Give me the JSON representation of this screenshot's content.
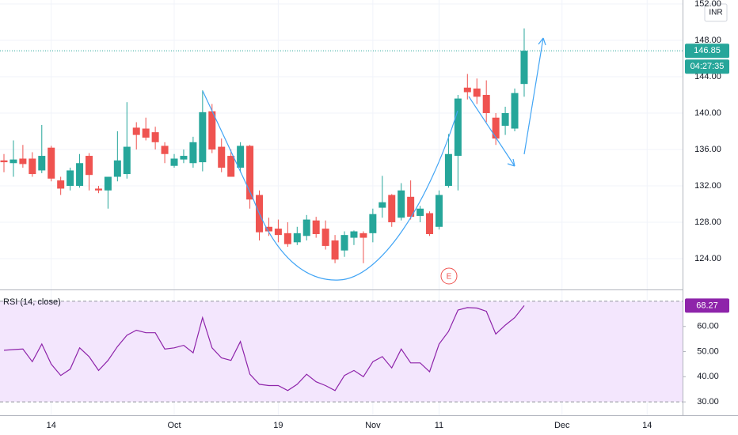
{
  "chart_data": [
    {
      "type": "candlestick",
      "currency": "INR",
      "countdown": "04:27:35",
      "event_marker": "E",
      "up_color": "#26a69a",
      "down_color": "#ef5350",
      "grid": true,
      "categories": [
        null,
        null,
        null,
        null,
        null,
        "14",
        null,
        null,
        null,
        null,
        null,
        null,
        null,
        null,
        null,
        null,
        null,
        null,
        "Oct",
        null,
        null,
        null,
        null,
        null,
        null,
        null,
        null,
        null,
        null,
        "19",
        null,
        null,
        null,
        null,
        null,
        null,
        null,
        null,
        null,
        "Nov",
        null,
        null,
        null,
        null,
        null,
        null,
        "11",
        null,
        null,
        null,
        null,
        null,
        null,
        null,
        null,
        null,
        null,
        null,
        null,
        "Dec",
        null,
        null,
        null,
        null,
        null,
        null,
        null,
        null,
        "14"
      ],
      "open": [
        134.8,
        134.5,
        135.0,
        135.0,
        133.7,
        136.2,
        132.6,
        132.0,
        132.0,
        135.3,
        131.7,
        131.5,
        133.0,
        133.3,
        138.4,
        138.3,
        137.9,
        136.4,
        134.2,
        134.9,
        134.5,
        134.6,
        140.2,
        136.3,
        135.3,
        134.0,
        136.4,
        131.0,
        127.5,
        127.3,
        126.8,
        125.8,
        126.5,
        128.2,
        127.3,
        126.0,
        124.9,
        126.3,
        126.8,
        126.8,
        129.6,
        131.0,
        128.5,
        130.8,
        128.7,
        129.0,
        127.5,
        132.0,
        135.3,
        142.8,
        142.7,
        142.0,
        139.5,
        138.6,
        138.3,
        143.2,
        null,
        null,
        null,
        null,
        null,
        null,
        null,
        null,
        null,
        null,
        null,
        null,
        null
      ],
      "high": [
        135.5,
        137.0,
        136.5,
        135.7,
        138.7,
        136.4,
        133.0,
        134.0,
        135.5,
        135.6,
        132.0,
        133.0,
        138.0,
        141.2,
        139.0,
        139.5,
        138.5,
        136.8,
        135.5,
        136.0,
        137.4,
        142.5,
        141.0,
        137.2,
        136.0,
        136.8,
        136.5,
        131.5,
        128.5,
        128.3,
        128.0,
        127.5,
        128.8,
        128.6,
        128.2,
        126.6,
        127.0,
        127.1,
        127.0,
        129.5,
        133.1,
        131.1,
        132.3,
        132.6,
        129.8,
        129.2,
        131.5,
        137.7,
        142.0,
        144.3,
        143.8,
        143.6,
        140.0,
        140.7,
        142.7,
        149.3,
        null,
        null,
        null,
        null,
        null,
        null,
        null,
        null,
        null,
        null,
        null,
        null,
        null
      ],
      "low": [
        133.5,
        133.0,
        134.0,
        133.0,
        133.4,
        132.5,
        131.0,
        131.5,
        131.8,
        131.5,
        131.2,
        129.5,
        132.5,
        132.8,
        136.0,
        137.0,
        136.0,
        134.5,
        134.0,
        134.5,
        134.0,
        133.6,
        135.6,
        133.5,
        133.0,
        133.5,
        129.5,
        126.0,
        126.5,
        125.8,
        125.3,
        125.5,
        126.0,
        126.3,
        125.0,
        123.5,
        124.2,
        125.5,
        123.5,
        125.8,
        128.5,
        127.5,
        128.2,
        128.3,
        128.0,
        126.5,
        127.2,
        131.8,
        131.5,
        141.5,
        141.0,
        139.0,
        136.5,
        137.6,
        138.0,
        141.8,
        null,
        null,
        null,
        null,
        null,
        null,
        null,
        null,
        null,
        null,
        null,
        null,
        null
      ],
      "close": [
        134.6,
        134.9,
        134.4,
        133.3,
        135.3,
        132.8,
        131.7,
        133.7,
        134.5,
        133.2,
        131.5,
        133.0,
        134.8,
        136.3,
        137.6,
        137.3,
        136.8,
        135.5,
        135.0,
        135.3,
        136.8,
        140.1,
        136.0,
        134.0,
        133.0,
        136.4,
        130.5,
        126.9,
        127.0,
        126.6,
        125.6,
        126.8,
        128.3,
        126.7,
        125.4,
        123.9,
        126.6,
        127.0,
        126.3,
        128.9,
        130.2,
        128.0,
        131.5,
        128.6,
        129.5,
        126.7,
        131.0,
        135.5,
        141.6,
        142.3,
        141.8,
        140.0,
        137.2,
        140.0,
        142.2,
        146.85,
        null,
        null,
        null,
        null,
        null,
        null,
        null,
        null,
        null,
        null,
        null,
        null,
        null
      ],
      "ylim": [
        120.7,
        152.43
      ],
      "yticks": [
        {
          "value": 124,
          "label": "124.00"
        },
        {
          "value": 128,
          "label": "128.00"
        },
        {
          "value": 132,
          "label": "132.00"
        },
        {
          "value": 136,
          "label": "136.00"
        },
        {
          "value": 140,
          "label": "140.00"
        },
        {
          "value": 144,
          "label": "144.00"
        },
        {
          "value": 148,
          "label": "148.00"
        },
        {
          "value": 152,
          "label": "152.00"
        }
      ]
    },
    {
      "type": "line",
      "title": "RSI (14, close)",
      "color": "#8e24aa",
      "band": [
        30,
        70
      ],
      "band_color": "#f3e6fd",
      "values": [
        50.5,
        50.8,
        51,
        46,
        53,
        45,
        40.5,
        43,
        51.5,
        48,
        42.5,
        46.5,
        52,
        56.5,
        58.5,
        57.5,
        57.5,
        51,
        51.5,
        52.5,
        49.5,
        63.5,
        51.5,
        47.5,
        46.5,
        54,
        41,
        37,
        36.5,
        36.5,
        34.5,
        37,
        41,
        38,
        36.5,
        34.5,
        40.5,
        42.5,
        40,
        46,
        48,
        43.5,
        51,
        45.5,
        45.5,
        42,
        53,
        58,
        66.5,
        67.5,
        67.3,
        66,
        57,
        60.5,
        63.5,
        68.27,
        null,
        null,
        null,
        null,
        null,
        null,
        null,
        null,
        null,
        null,
        null,
        null,
        null
      ],
      "ylim": [
        24.7,
        74.06
      ],
      "yticks": [
        {
          "value": 30,
          "label": "30.00"
        },
        {
          "value": 40,
          "label": "40.00"
        },
        {
          "value": 50,
          "label": "50.00"
        },
        {
          "value": 60,
          "label": "60.00"
        }
      ]
    }
  ]
}
